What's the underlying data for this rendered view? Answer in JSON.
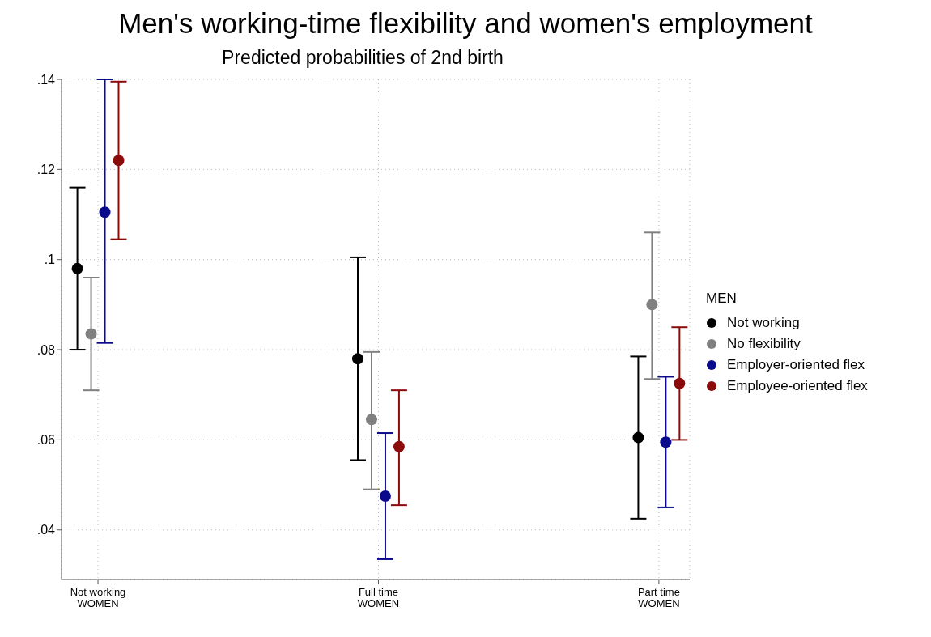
{
  "chart_data": {
    "type": "scatter",
    "title": "Men's working-time flexibility and women's employment",
    "subtitle": "Predicted probabilities of 2nd birth",
    "categories": [
      "Not working\nWOMEN",
      "Full time\nWOMEN",
      "Part time\nWOMEN"
    ],
    "legend_title": "MEN",
    "series": [
      {
        "name": "Not working",
        "color": "#000000",
        "values": [
          0.098,
          0.078,
          0.0605
        ],
        "errors": [
          [
            0.08,
            0.116
          ],
          [
            0.0555,
            0.1005
          ],
          [
            0.0425,
            0.0785
          ]
        ]
      },
      {
        "name": "No flexibility",
        "color": "#808080",
        "values": [
          0.0835,
          0.0645,
          0.09
        ],
        "errors": [
          [
            0.071,
            0.096
          ],
          [
            0.049,
            0.0795
          ],
          [
            0.0735,
            0.106
          ]
        ]
      },
      {
        "name": "Employer-oriented flex",
        "color": "#0a0a8c",
        "values": [
          0.1105,
          0.0475,
          0.0595
        ],
        "errors": [
          [
            0.0815,
            0.14
          ],
          [
            0.0335,
            0.0615
          ],
          [
            0.045,
            0.074
          ]
        ]
      },
      {
        "name": "Employee-oriented flex",
        "color": "#8b0a0a",
        "values": [
          0.122,
          0.0585,
          0.0725
        ],
        "errors": [
          [
            0.1045,
            0.1395
          ],
          [
            0.0455,
            0.071
          ],
          [
            0.06,
            0.085
          ]
        ]
      }
    ],
    "ylim": [
      0.029,
      0.14
    ],
    "yticks": [
      {
        "value": 0.04,
        "label": ".04"
      },
      {
        "value": 0.06,
        "label": ".06"
      },
      {
        "value": 0.08,
        "label": ".08"
      },
      {
        "value": 0.1,
        "label": ".1"
      },
      {
        "value": 0.12,
        "label": ".12"
      },
      {
        "value": 0.14,
        "label": ".14"
      }
    ],
    "grid": true,
    "legend": "right",
    "marker": "circle"
  }
}
